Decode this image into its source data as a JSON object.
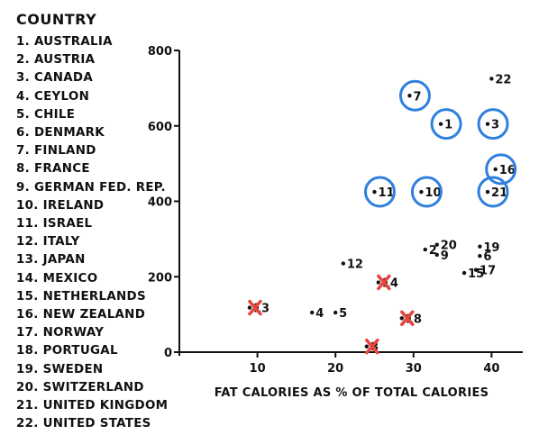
{
  "countries": {
    "heading": "COUNTRY",
    "items": [
      "1. AUSTRALIA",
      "2. AUSTRIA",
      "3. CANADA",
      "4. CEYLON",
      "5. CHILE",
      "6. DENMARK",
      "7. FINLAND",
      "8. FRANCE",
      "9. GERMAN FED. REP.",
      "10. IRELAND",
      "11. ISRAEL",
      "12. ITALY",
      "13. JAPAN",
      "14. MEXICO",
      "15. NETHERLANDS",
      "16. NEW ZEALAND",
      "17. NORWAY",
      "18. PORTUGAL",
      "19. SWEDEN",
      "20. SWITZERLAND",
      "21. UNITED KINGDOM",
      "22. UNITED STATES"
    ]
  },
  "colors": {
    "circle": "#2f7fe0",
    "cross": "#e8453c",
    "ink": "#111111"
  },
  "chart_data": {
    "type": "scatter",
    "xlabel": "FAT CALORIES AS % OF TOTAL CALORIES",
    "ylabel": "",
    "xlim": [
      0,
      44
    ],
    "ylim": [
      0,
      800
    ],
    "xticks": [
      10,
      20,
      30,
      40
    ],
    "yticks": [
      0,
      200,
      400,
      600,
      800
    ],
    "grid": false,
    "points": [
      {
        "label": "1",
        "x": 33.5,
        "y": 605,
        "mark": "circle"
      },
      {
        "label": "2",
        "x": 31.5,
        "y": 272,
        "mark": "none"
      },
      {
        "label": "3",
        "x": 39.5,
        "y": 605,
        "mark": "circle"
      },
      {
        "label": "4",
        "x": 17,
        "y": 105,
        "mark": "none"
      },
      {
        "label": "5",
        "x": 20,
        "y": 105,
        "mark": "none"
      },
      {
        "label": "6",
        "x": 38.5,
        "y": 255,
        "mark": "none"
      },
      {
        "label": "7",
        "x": 29.5,
        "y": 680,
        "mark": "circle"
      },
      {
        "label": "8",
        "x": 24,
        "y": 15,
        "mark": "cross"
      },
      {
        "label": "9",
        "x": 33,
        "y": 258,
        "mark": "none"
      },
      {
        "label": "10",
        "x": 31,
        "y": 425,
        "mark": "circle"
      },
      {
        "label": "11",
        "x": 25,
        "y": 425,
        "mark": "circle"
      },
      {
        "label": "12",
        "x": 21,
        "y": 235,
        "mark": "none"
      },
      {
        "label": "13",
        "x": 9,
        "y": 118,
        "mark": "cross"
      },
      {
        "label": "14",
        "x": 25.5,
        "y": 185,
        "mark": "cross"
      },
      {
        "label": "15",
        "x": 36.5,
        "y": 210,
        "mark": "none"
      },
      {
        "label": "16",
        "x": 40.5,
        "y": 485,
        "mark": "circle"
      },
      {
        "label": "17",
        "x": 38,
        "y": 218,
        "mark": "none"
      },
      {
        "label": "18",
        "x": 28.5,
        "y": 90,
        "mark": "cross"
      },
      {
        "label": "19",
        "x": 38.5,
        "y": 280,
        "mark": "none"
      },
      {
        "label": "20",
        "x": 33,
        "y": 285,
        "mark": "none"
      },
      {
        "label": "21",
        "x": 39.5,
        "y": 425,
        "mark": "circle"
      },
      {
        "label": "22",
        "x": 40,
        "y": 725,
        "mark": "none"
      }
    ]
  }
}
